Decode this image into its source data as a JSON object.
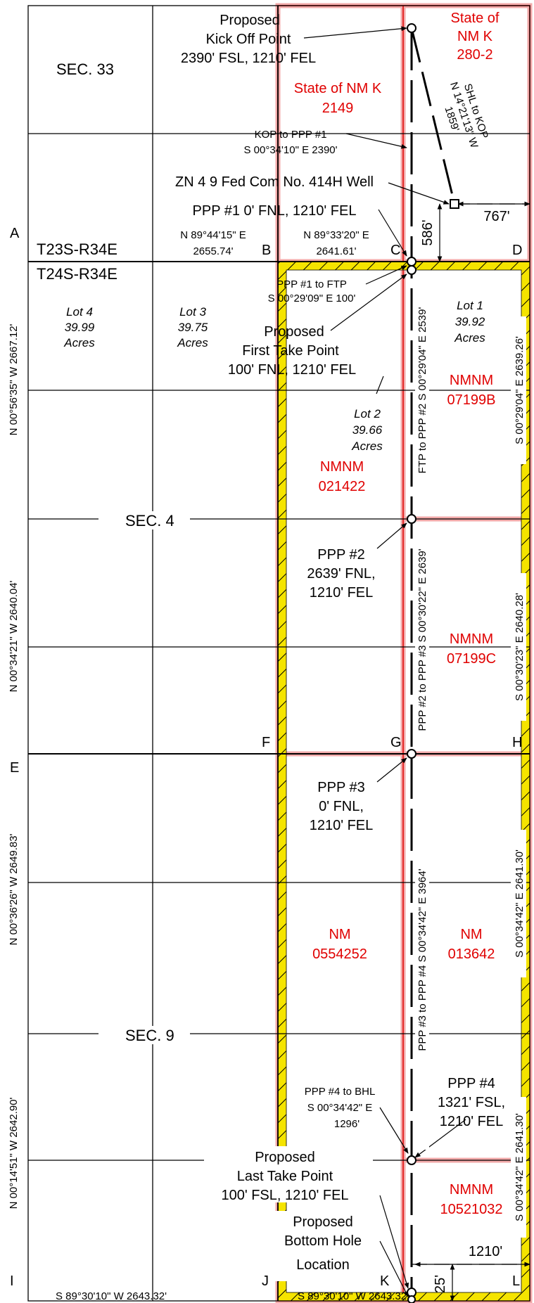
{
  "township": {
    "north": "T23S-R34E",
    "south": "T24S-R34E"
  },
  "sections": {
    "sec33": "SEC. 33",
    "sec4": "SEC. 4",
    "sec9": "SEC. 9"
  },
  "corners": {
    "A": "A",
    "B": "B",
    "C": "C",
    "D": "D",
    "E": "E",
    "F": "F",
    "G": "G",
    "H": "H",
    "I": "I",
    "J": "J",
    "K": "K",
    "L": "L"
  },
  "leases": {
    "nmk_280": {
      "line1": "State of",
      "line2": "NM K",
      "line3": "280-2"
    },
    "nmk_2149": {
      "line1": "State of NM K",
      "line2": "2149"
    },
    "nmnm_07199b": {
      "line1": "NMNM",
      "line2": "07199B"
    },
    "nmnm_021422": {
      "line1": "NMNM",
      "line2": "021422"
    },
    "nmnm_07199c": {
      "line1": "NMNM",
      "line2": "07199C"
    },
    "nm_0554252": {
      "line1": "NM",
      "line2": "0554252"
    },
    "nm_013642": {
      "line1": "NM",
      "line2": "013642"
    },
    "nmnm_10521032": {
      "line1": "NMNM",
      "line2": "10521032"
    }
  },
  "lots": {
    "lot4": {
      "name": "Lot 4",
      "value": "39.99",
      "unit": "Acres"
    },
    "lot3": {
      "name": "Lot 3",
      "value": "39.75",
      "unit": "Acres"
    },
    "lot2": {
      "name": "Lot 2",
      "value": "39.66",
      "unit": "Acres"
    },
    "lot1": {
      "name": "Lot 1",
      "value": "39.92",
      "unit": "Acres"
    }
  },
  "callouts": {
    "kop": {
      "line1": "Proposed",
      "line2": "Kick Off Point",
      "line3": "2390' FSL, 1210' FEL"
    },
    "kop_ppp1": {
      "line1": "KOP to PPP #1",
      "line2": "S 00°34'10\" E 2390'"
    },
    "well": "ZN 4 9 Fed Com No. 414H Well",
    "ppp1": "PPP #1 0' FNL, 1210' FEL",
    "ppp1_ftp": {
      "line1": "PPP #1 to FTP",
      "line2": "S 00°29'09\" E 100'"
    },
    "ftp": {
      "line1": "Proposed",
      "line2": "First Take Point",
      "line3": "100' FNL, 1210' FEL"
    },
    "ppp2": {
      "line1": "PPP #2",
      "line2": "2639' FNL,",
      "line3": "1210' FEL"
    },
    "ppp3": {
      "line1": "PPP #3",
      "line2": "0' FNL,",
      "line3": "1210' FEL"
    },
    "ppp4": {
      "line1": "PPP #4",
      "line2": "1321' FSL,",
      "line3": "1210' FEL"
    },
    "ppp4_bhl": {
      "line1": "PPP #4 to BHL",
      "line2": "S 00°34'42\" E",
      "line3": "1296'"
    },
    "ltp": {
      "line1": "Proposed",
      "line2": "Last Take Point",
      "line3": "100' FSL, 1210' FEL"
    },
    "bhl": {
      "line1": "Proposed",
      "line2": "Bottom Hole",
      "line3": "Location"
    }
  },
  "distances": {
    "shl_east": "767'",
    "shl_north": "586'",
    "bhl_north": "25'",
    "bhl_east": "1210'",
    "shl_kop": {
      "line1": "SHL to KOP",
      "line2": "N 14°21'13\" W",
      "line3": "1859'"
    }
  },
  "bearings": {
    "top_ab": {
      "line1": "N 89°44'15\" E",
      "line2": "2655.74'"
    },
    "top_bc": {
      "line1": "N 89°33'20\" E",
      "line2": "2641.61'"
    },
    "bottom_ij": "S 89°30'10\" W   2643.32'",
    "bottom_jk": "S 89°30'10\" W   2643.32'",
    "left_sec4a": "N 00°56'35\" W   2667.12'",
    "left_sec4b": "N 00°34'21\" W   2640.04'",
    "left_sec9a": "N 00°36'26\" W   2649.83'",
    "left_sec9b": "N 00°14'51\" W   2642.90'",
    "right_1": "S 00°29'04\" E   2639.26'",
    "right_2": "S 00°30'23\" E   2640.28'",
    "right_3": "S 00°34'42\" E   2641.30'",
    "right_4": "S 00°34'42\" E   2641.30'",
    "ftp_ppp2": "FTP to PPP #2  S 00°29'04\" E  2539'",
    "ppp2_ppp3": "PPP #2 to PPP #3  S 00°30'22\" E  2639'",
    "ppp3_ppp4": "PPP #3 to PPP #4  S 00°34'42\" E  3964'"
  },
  "colors": {
    "lease_red": "#e00000",
    "lease_fill": "#f7c0c0",
    "hatch_yellow": "#f5e400"
  }
}
